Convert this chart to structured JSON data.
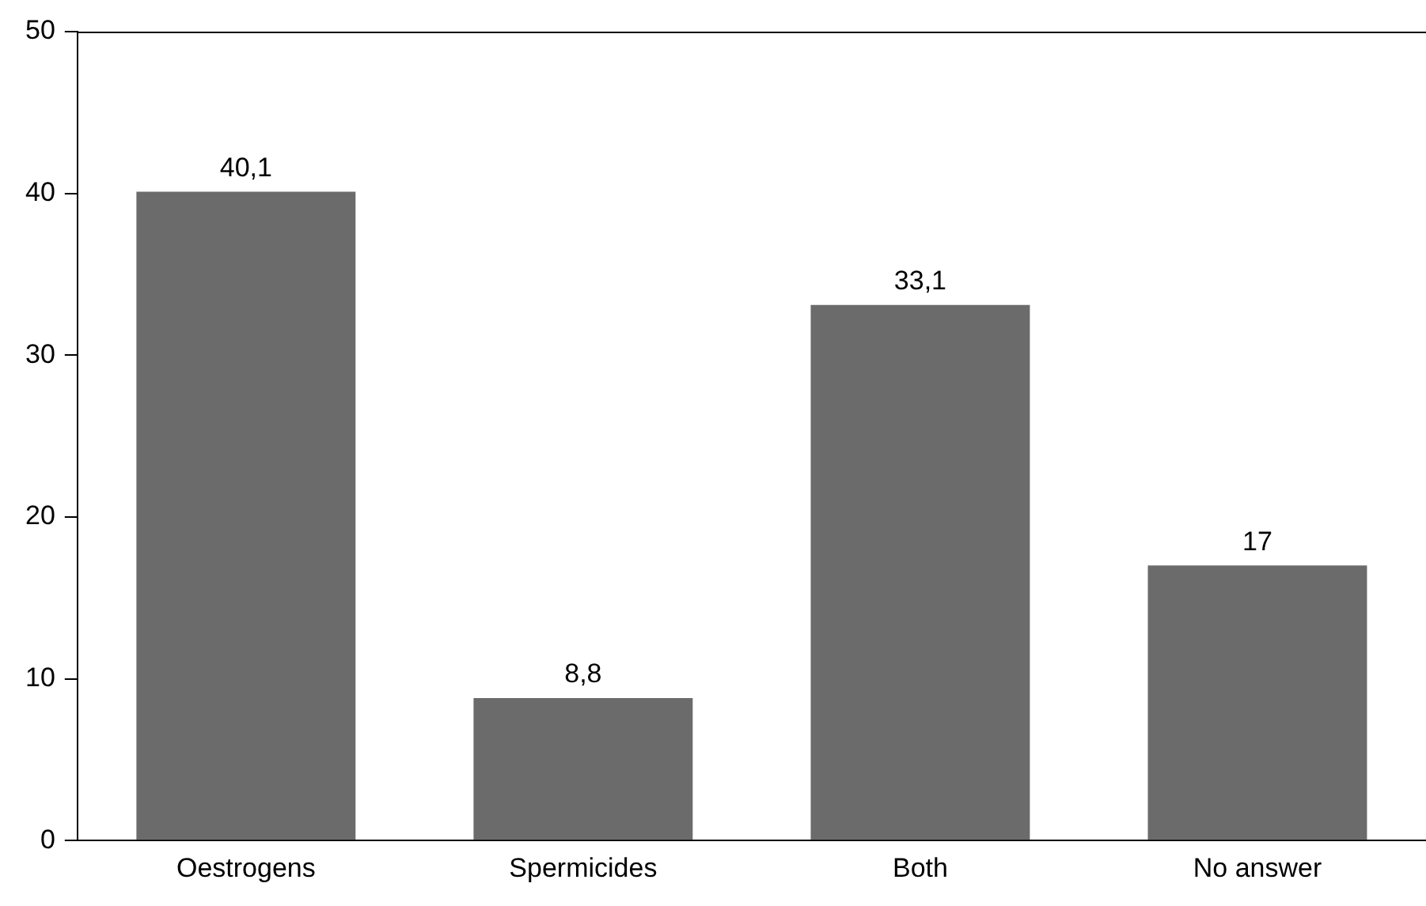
{
  "chart_data": {
    "type": "bar",
    "categories": [
      "Oestrogens",
      "Spermicides",
      "Both",
      "No answer"
    ],
    "values": [
      40.1,
      8.8,
      33.1,
      17
    ],
    "value_labels": [
      "40,1",
      "8,8",
      "33,1",
      "17"
    ],
    "color": "#6b6b6b",
    "ylim": [
      0,
      50
    ],
    "yticks": [
      0,
      10,
      20,
      30,
      40,
      50
    ],
    "grid": false,
    "legend": false
  }
}
